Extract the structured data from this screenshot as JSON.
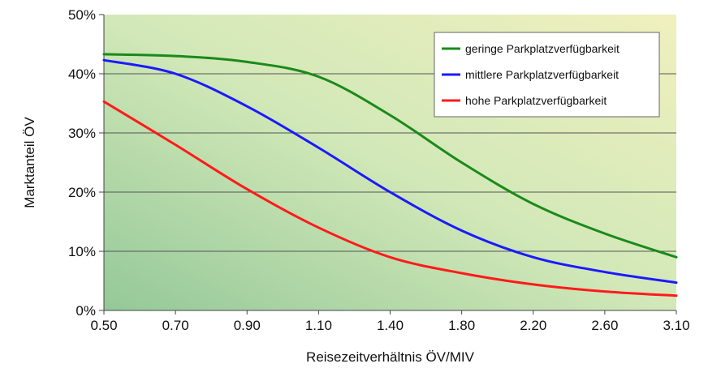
{
  "chart_data": {
    "type": "line",
    "title": "",
    "xlabel": "Reisezeitverhältnis ÖV/MIV",
    "ylabel": "Marktanteil ÖV",
    "x_tick_labels": [
      "0.50",
      "0.70",
      "0.90",
      "1.10",
      "1.40",
      "1.80",
      "2.20",
      "2.60",
      "3.10"
    ],
    "y_tick_labels": [
      "0%",
      "10%",
      "20%",
      "30%",
      "40%",
      "50%"
    ],
    "ylim": [
      0,
      50
    ],
    "grid": "horizontal",
    "legend_position": "top-right",
    "background": "gradient green-yellow",
    "series": [
      {
        "name": "geringe Parkplatzverfügbarkeit",
        "color": "#1a8a1a",
        "x": [
          "0.50",
          "0.70",
          "0.90",
          "1.10",
          "1.40",
          "1.80",
          "2.20",
          "2.60",
          "3.10"
        ],
        "y": [
          43.3,
          43.0,
          42.0,
          39.5,
          33.0,
          25.0,
          18.0,
          13.0,
          9.0
        ]
      },
      {
        "name": "mittlere Parkplatzverfügbarkeit",
        "color": "#1a1aff",
        "x": [
          "0.50",
          "0.70",
          "0.90",
          "1.10",
          "1.40",
          "1.80",
          "2.20",
          "2.60",
          "3.10"
        ],
        "y": [
          42.3,
          40.0,
          34.5,
          27.5,
          20.0,
          13.5,
          9.0,
          6.5,
          4.7
        ]
      },
      {
        "name": "hohe Parkplatzverfügbarkeit",
        "color": "#ff1a1a",
        "x": [
          "0.50",
          "0.70",
          "0.90",
          "1.10",
          "1.40",
          "1.80",
          "2.20",
          "2.60",
          "3.10"
        ],
        "y": [
          35.3,
          28.0,
          20.5,
          14.0,
          9.0,
          6.3,
          4.4,
          3.2,
          2.5
        ]
      }
    ]
  }
}
